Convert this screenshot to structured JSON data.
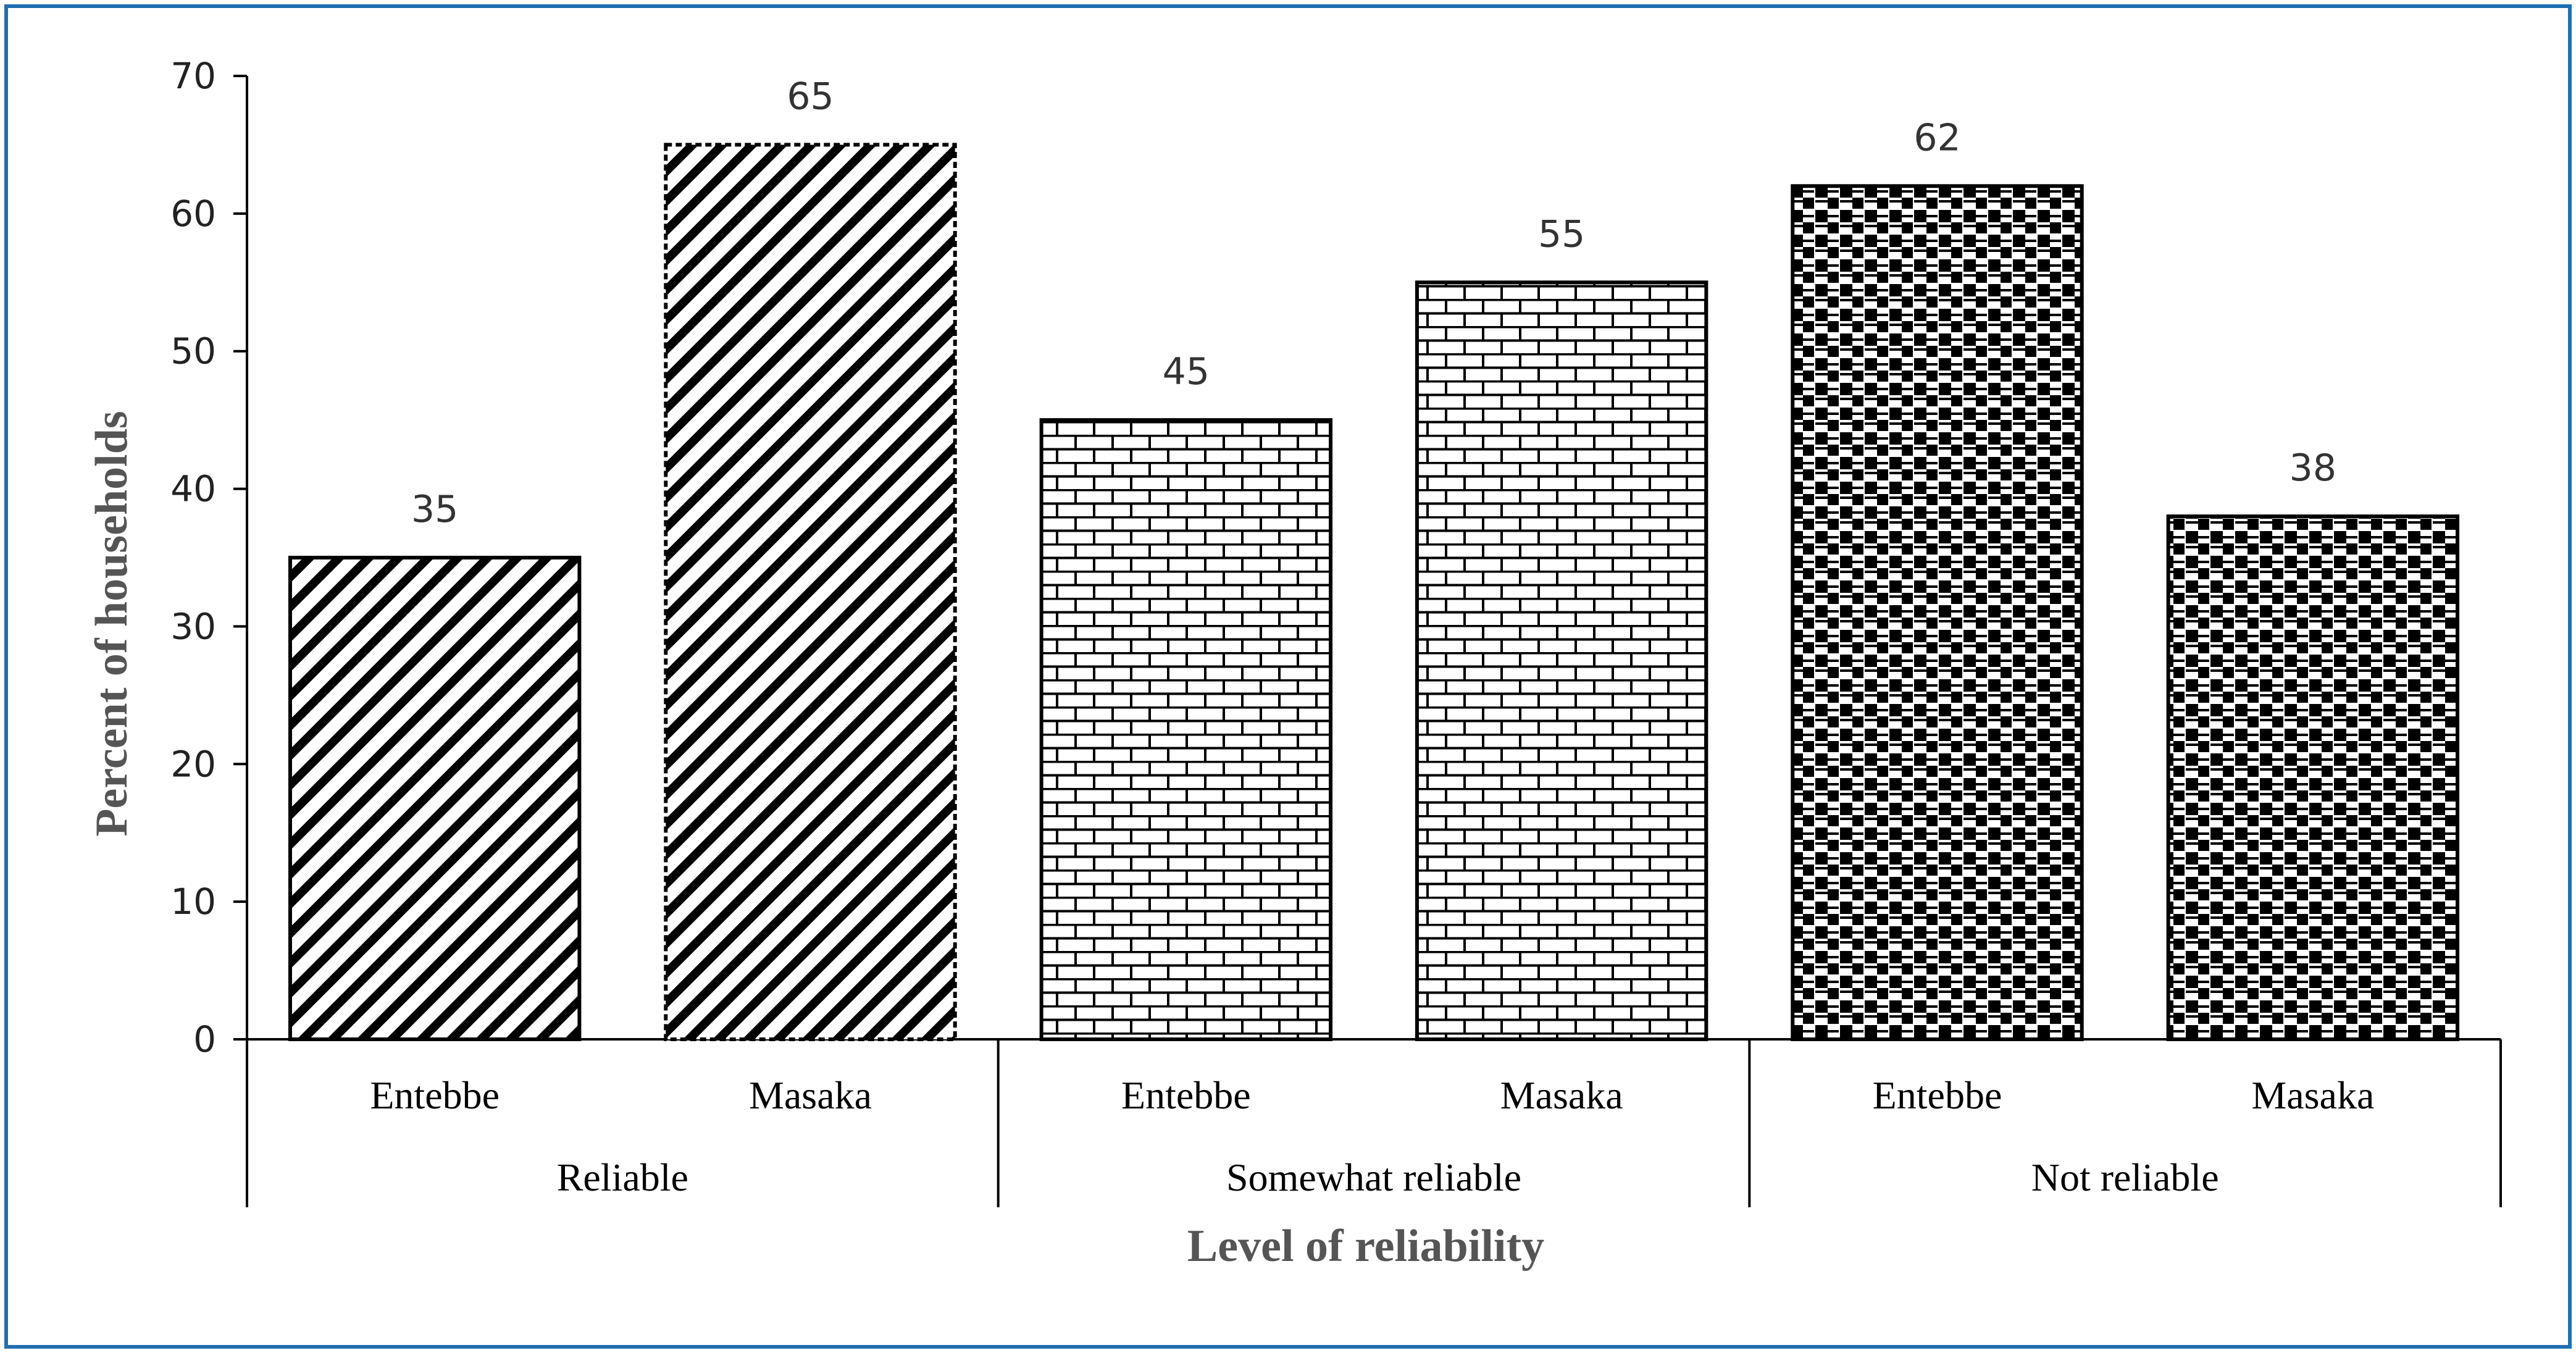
{
  "chart_data": {
    "type": "bar",
    "title": "",
    "xlabel": "Level of reliability",
    "ylabel": "Percent of households",
    "ylim": [
      0,
      70
    ],
    "y_ticks": [
      0,
      10,
      20,
      30,
      40,
      50,
      60,
      70
    ],
    "grid": false,
    "groups": [
      {
        "name": "Reliable",
        "bars": [
          {
            "category": "Entebbe",
            "value": 35,
            "pattern": "diagonal-stripes"
          },
          {
            "category": "Masaka",
            "value": 65,
            "pattern": "diagonal-stripes"
          }
        ]
      },
      {
        "name": "Somewhat reliable",
        "bars": [
          {
            "category": "Entebbe",
            "value": 45,
            "pattern": "brick"
          },
          {
            "category": "Masaka",
            "value": 55,
            "pattern": "brick"
          }
        ]
      },
      {
        "name": "Not reliable",
        "bars": [
          {
            "category": "Entebbe",
            "value": 62,
            "pattern": "checker"
          },
          {
            "category": "Masaka",
            "value": 38,
            "pattern": "checker"
          }
        ]
      }
    ]
  },
  "colors": {
    "frame_border": "#1f6fb2",
    "axis": "#000000",
    "text": "#222222",
    "axis_title": "#555555",
    "bar_fill": "#ffffff",
    "pattern": "#000000"
  }
}
